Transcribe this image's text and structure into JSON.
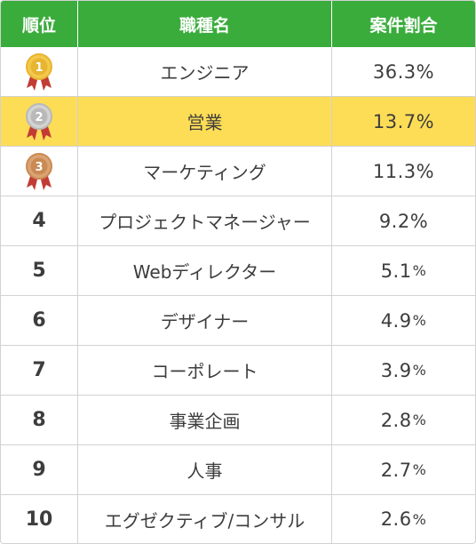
{
  "header": {
    "rank": "順位",
    "job": "職種名",
    "share": "案件割合"
  },
  "colors": {
    "header_bg": "#3aac3c",
    "highlight_bg": "#fddd55",
    "gold": "#e8b531",
    "silver": "#b9b9b9",
    "bronze": "#c98a53",
    "ribbon": "#c23c35"
  },
  "rows": [
    {
      "rank": "1",
      "medal": "gold-medal-icon",
      "job": "エンジニア",
      "share": "36.3",
      "unit": "%"
    },
    {
      "rank": "2",
      "medal": "silver-medal-icon",
      "job": "営業",
      "share": "13.7",
      "unit": "%"
    },
    {
      "rank": "3",
      "medal": "bronze-medal-icon",
      "job": "マーケティング",
      "share": "11.3",
      "unit": "%"
    },
    {
      "rank": "4",
      "job": "プロジェクトマネージャー",
      "share": "9.2",
      "unit": "%"
    },
    {
      "rank": "5",
      "job": "Webディレクター",
      "share": "5.1",
      "unit": "%"
    },
    {
      "rank": "6",
      "job": "デザイナー",
      "share": "4.9",
      "unit": "%"
    },
    {
      "rank": "7",
      "job": "コーポレート",
      "share": "3.9",
      "unit": "%"
    },
    {
      "rank": "8",
      "job": "事業企画",
      "share": "2.8",
      "unit": "%"
    },
    {
      "rank": "9",
      "job": "人事",
      "share": "2.7",
      "unit": "%"
    },
    {
      "rank": "10",
      "job": "エグゼクティブ/コンサル",
      "share": "2.6",
      "unit": "%"
    }
  ]
}
